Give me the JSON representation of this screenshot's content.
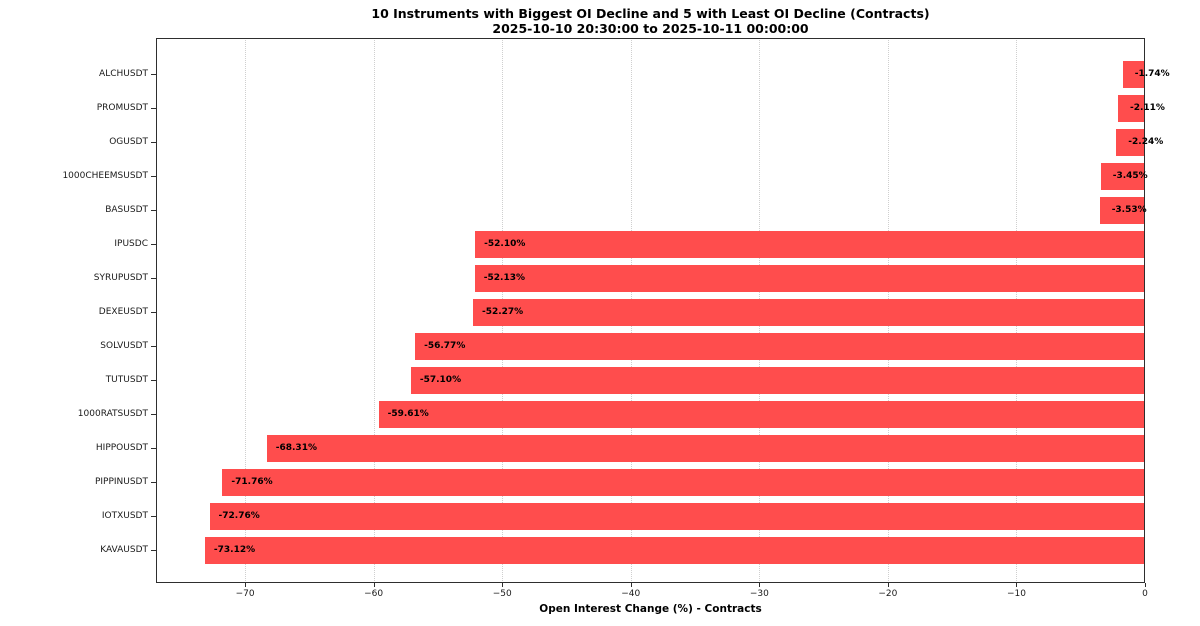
{
  "chart_data": {
    "type": "bar",
    "orientation": "horizontal",
    "title": "10 Instruments with Biggest OI Decline and 5 with Least OI Decline (Contracts)",
    "subtitle": "2025-10-10 20:30:00 to 2025-10-11 00:00:00",
    "xlabel": "Open Interest Change (%) - Contracts",
    "categories": [
      "ALCHUSDT",
      "PROMUSDT",
      "OGUSDT",
      "1000CHEEMSUSDT",
      "BASUSDT",
      "IPUSDC",
      "SYRUPUSDT",
      "DEXEUSDT",
      "SOLVUSDT",
      "TUTUSDT",
      "1000RATSUSDT",
      "HIPPOUSDT",
      "PIPPINUSDT",
      "IOTXUSDT",
      "KAVAUSDT"
    ],
    "values": [
      -1.74,
      -2.11,
      -2.24,
      -3.45,
      -3.53,
      -52.1,
      -52.13,
      -52.27,
      -56.77,
      -57.1,
      -59.61,
      -68.31,
      -71.76,
      -72.76,
      -73.12
    ],
    "bar_labels": [
      "-1.74%",
      "-2.11%",
      "-2.24%",
      "-3.45%",
      "-3.53%",
      "-52.10%",
      "-52.13%",
      "-52.27%",
      "-56.77%",
      "-57.10%",
      "-59.61%",
      "-68.31%",
      "-71.76%",
      "-72.76%",
      "-73.12%"
    ],
    "xticks": [
      -70,
      -60,
      -50,
      -40,
      -30,
      -20,
      -10,
      0
    ],
    "xtick_labels": [
      "−70",
      "−60",
      "−50",
      "−40",
      "−30",
      "−20",
      "−10",
      "0"
    ],
    "xlim": [
      -76.93,
      0
    ],
    "grid": true,
    "gridline_style": "dotted",
    "legend": false,
    "bar_color": "#ff4d4d",
    "background_color": "#ffffff",
    "text_color": "#000000"
  }
}
